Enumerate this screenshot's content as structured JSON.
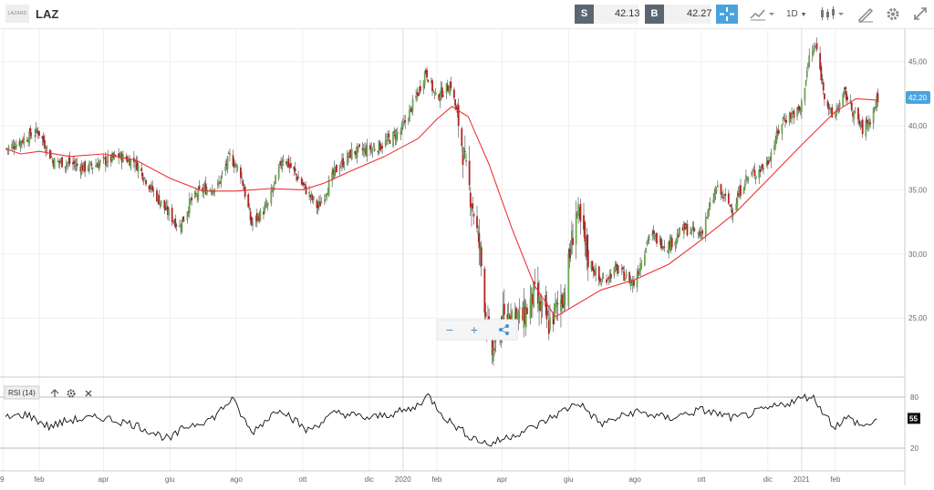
{
  "header": {
    "logo_text": "LAZARD",
    "symbol": "LAZ",
    "sell_label": "S",
    "sell_price": "42.13",
    "buy_label": "B",
    "buy_price": "42.27",
    "interval_label": "1D",
    "icons": [
      "crosshair-icon",
      "chart-type-icon",
      "candles-icon",
      "draw-icon",
      "gear-icon",
      "expand-icon"
    ]
  },
  "zoom": {
    "minus_label": "−",
    "plus_label": "+"
  },
  "rsi": {
    "label": "RSI (14)",
    "current": "55",
    "levels": [
      80,
      20
    ]
  },
  "chart_data": {
    "type": "candlestick",
    "price_axis": {
      "ticks": [
        "45,00",
        "40,00",
        "35,00",
        "30,00",
        "25,00"
      ],
      "range": [
        20.4,
        47.6
      ]
    },
    "last_price_label": "42,20",
    "x_ticks": [
      "9",
      "feb",
      "apr",
      "giu",
      "ago",
      "ott",
      "dic",
      "2020",
      "feb",
      "apr",
      "giu",
      "ago",
      "ott",
      "dic",
      "2021",
      "feb"
    ],
    "close_series": [
      {
        "d": "2019-01-02",
        "v": 38.2
      },
      {
        "d": "2019-01-15",
        "v": 38.8
      },
      {
        "d": "2019-01-31",
        "v": 39.6
      },
      {
        "d": "2019-02-14",
        "v": 37.2
      },
      {
        "d": "2019-02-28",
        "v": 37.1
      },
      {
        "d": "2019-03-15",
        "v": 36.7
      },
      {
        "d": "2019-03-29",
        "v": 37.1
      },
      {
        "d": "2019-04-15",
        "v": 37.6
      },
      {
        "d": "2019-04-30",
        "v": 37.2
      },
      {
        "d": "2019-05-15",
        "v": 35.1
      },
      {
        "d": "2019-05-31",
        "v": 33.1
      },
      {
        "d": "2019-06-10",
        "v": 32.1
      },
      {
        "d": "2019-06-20",
        "v": 34.1
      },
      {
        "d": "2019-07-01",
        "v": 35.0
      },
      {
        "d": "2019-07-15",
        "v": 35.3
      },
      {
        "d": "2019-07-26",
        "v": 37.6
      },
      {
        "d": "2019-08-05",
        "v": 36.3
      },
      {
        "d": "2019-08-15",
        "v": 32.3
      },
      {
        "d": "2019-08-30",
        "v": 33.8
      },
      {
        "d": "2019-09-13",
        "v": 37.6
      },
      {
        "d": "2019-09-30",
        "v": 35.5
      },
      {
        "d": "2019-10-15",
        "v": 33.6
      },
      {
        "d": "2019-10-31",
        "v": 36.5
      },
      {
        "d": "2019-11-15",
        "v": 37.9
      },
      {
        "d": "2019-11-29",
        "v": 38.1
      },
      {
        "d": "2019-12-13",
        "v": 38.5
      },
      {
        "d": "2019-12-31",
        "v": 39.7
      },
      {
        "d": "2020-01-15",
        "v": 42.6
      },
      {
        "d": "2020-01-22",
        "v": 44.3
      },
      {
        "d": "2020-01-31",
        "v": 42.2
      },
      {
        "d": "2020-02-14",
        "v": 43.2
      },
      {
        "d": "2020-02-21",
        "v": 40.3
      },
      {
        "d": "2020-02-28",
        "v": 36.3
      },
      {
        "d": "2020-03-06",
        "v": 33.3
      },
      {
        "d": "2020-03-12",
        "v": 30.0
      },
      {
        "d": "2020-03-18",
        "v": 24.5
      },
      {
        "d": "2020-03-23",
        "v": 22.3
      },
      {
        "d": "2020-03-31",
        "v": 24.5
      },
      {
        "d": "2020-04-09",
        "v": 25.5
      },
      {
        "d": "2020-04-20",
        "v": 25.0
      },
      {
        "d": "2020-04-30",
        "v": 26.8
      },
      {
        "d": "2020-05-14",
        "v": 24.5
      },
      {
        "d": "2020-05-29",
        "v": 27.2
      },
      {
        "d": "2020-06-08",
        "v": 33.5
      },
      {
        "d": "2020-06-19",
        "v": 29.7
      },
      {
        "d": "2020-06-30",
        "v": 27.8
      },
      {
        "d": "2020-07-15",
        "v": 28.8
      },
      {
        "d": "2020-07-31",
        "v": 27.7
      },
      {
        "d": "2020-08-14",
        "v": 31.5
      },
      {
        "d": "2020-08-31",
        "v": 30.6
      },
      {
        "d": "2020-09-15",
        "v": 32.0
      },
      {
        "d": "2020-09-30",
        "v": 31.5
      },
      {
        "d": "2020-10-15",
        "v": 35.1
      },
      {
        "d": "2020-10-30",
        "v": 33.5
      },
      {
        "d": "2020-11-10",
        "v": 35.8
      },
      {
        "d": "2020-11-30",
        "v": 37.0
      },
      {
        "d": "2020-12-15",
        "v": 40.5
      },
      {
        "d": "2020-12-31",
        "v": 41.2
      },
      {
        "d": "2021-01-08",
        "v": 45.3
      },
      {
        "d": "2021-01-14",
        "v": 46.2
      },
      {
        "d": "2021-01-22",
        "v": 42.5
      },
      {
        "d": "2021-01-29",
        "v": 40.6
      },
      {
        "d": "2021-02-10",
        "v": 42.5
      },
      {
        "d": "2021-02-19",
        "v": 40.8
      },
      {
        "d": "2021-02-26",
        "v": 39.7
      },
      {
        "d": "2021-03-05",
        "v": 40.5
      },
      {
        "d": "2021-03-12",
        "v": 42.2
      }
    ],
    "moving_average": [
      {
        "d": "2019-01-01",
        "v": 38.2
      },
      {
        "d": "2019-01-15",
        "v": 37.8
      },
      {
        "d": "2019-02-01",
        "v": 38.0
      },
      {
        "d": "2019-03-01",
        "v": 37.6
      },
      {
        "d": "2019-04-01",
        "v": 37.8
      },
      {
        "d": "2019-05-01",
        "v": 37.3
      },
      {
        "d": "2019-06-01",
        "v": 35.9
      },
      {
        "d": "2019-07-01",
        "v": 34.9
      },
      {
        "d": "2019-08-01",
        "v": 34.9
      },
      {
        "d": "2019-09-01",
        "v": 35.1
      },
      {
        "d": "2019-10-01",
        "v": 35.0
      },
      {
        "d": "2019-10-20",
        "v": 35.5
      },
      {
        "d": "2019-11-15",
        "v": 36.5
      },
      {
        "d": "2019-12-15",
        "v": 37.6
      },
      {
        "d": "2020-01-15",
        "v": 39.0
      },
      {
        "d": "2020-02-01",
        "v": 40.5
      },
      {
        "d": "2020-02-15",
        "v": 41.5
      },
      {
        "d": "2020-03-01",
        "v": 40.7
      },
      {
        "d": "2020-03-20",
        "v": 37.0
      },
      {
        "d": "2020-04-10",
        "v": 32.0
      },
      {
        "d": "2020-05-01",
        "v": 27.5
      },
      {
        "d": "2020-05-20",
        "v": 25.1
      },
      {
        "d": "2020-06-05",
        "v": 25.9
      },
      {
        "d": "2020-07-01",
        "v": 27.2
      },
      {
        "d": "2020-08-01",
        "v": 28.0
      },
      {
        "d": "2020-09-01",
        "v": 29.2
      },
      {
        "d": "2020-10-01",
        "v": 31.1
      },
      {
        "d": "2020-11-01",
        "v": 33.2
      },
      {
        "d": "2020-12-01",
        "v": 35.8
      },
      {
        "d": "2021-01-01",
        "v": 38.5
      },
      {
        "d": "2021-02-01",
        "v": 41.1
      },
      {
        "d": "2021-02-20",
        "v": 42.1
      },
      {
        "d": "2021-03-12",
        "v": 42.0
      }
    ],
    "rsi_series": [
      {
        "d": "2019-01-01",
        "v": 55
      },
      {
        "d": "2019-01-20",
        "v": 60
      },
      {
        "d": "2019-02-10",
        "v": 45
      },
      {
        "d": "2019-03-01",
        "v": 53
      },
      {
        "d": "2019-04-01",
        "v": 56
      },
      {
        "d": "2019-05-01",
        "v": 47
      },
      {
        "d": "2019-06-01",
        "v": 30
      },
      {
        "d": "2019-06-15",
        "v": 45
      },
      {
        "d": "2019-07-10",
        "v": 55
      },
      {
        "d": "2019-07-28",
        "v": 78
      },
      {
        "d": "2019-08-15",
        "v": 38
      },
      {
        "d": "2019-09-10",
        "v": 68
      },
      {
        "d": "2019-10-05",
        "v": 40
      },
      {
        "d": "2019-11-01",
        "v": 62
      },
      {
        "d": "2019-12-01",
        "v": 55
      },
      {
        "d": "2020-01-10",
        "v": 66
      },
      {
        "d": "2020-01-24",
        "v": 82
      },
      {
        "d": "2020-02-10",
        "v": 54
      },
      {
        "d": "2020-03-01",
        "v": 35
      },
      {
        "d": "2020-03-20",
        "v": 24
      },
      {
        "d": "2020-04-10",
        "v": 35
      },
      {
        "d": "2020-05-01",
        "v": 45
      },
      {
        "d": "2020-06-10",
        "v": 74
      },
      {
        "d": "2020-07-01",
        "v": 48
      },
      {
        "d": "2020-08-01",
        "v": 63
      },
      {
        "d": "2020-09-01",
        "v": 55
      },
      {
        "d": "2020-10-01",
        "v": 65
      },
      {
        "d": "2020-11-01",
        "v": 55
      },
      {
        "d": "2020-12-01",
        "v": 66
      },
      {
        "d": "2021-01-10",
        "v": 82
      },
      {
        "d": "2021-01-31",
        "v": 45
      },
      {
        "d": "2021-02-12",
        "v": 56
      },
      {
        "d": "2021-02-28",
        "v": 45
      },
      {
        "d": "2021-03-12",
        "v": 55
      }
    ],
    "colors": {
      "up": "#6aa84f",
      "down": "#b22222",
      "ma": "#ee3333",
      "rsi": "#111111",
      "accent": "#4aa3df"
    }
  }
}
